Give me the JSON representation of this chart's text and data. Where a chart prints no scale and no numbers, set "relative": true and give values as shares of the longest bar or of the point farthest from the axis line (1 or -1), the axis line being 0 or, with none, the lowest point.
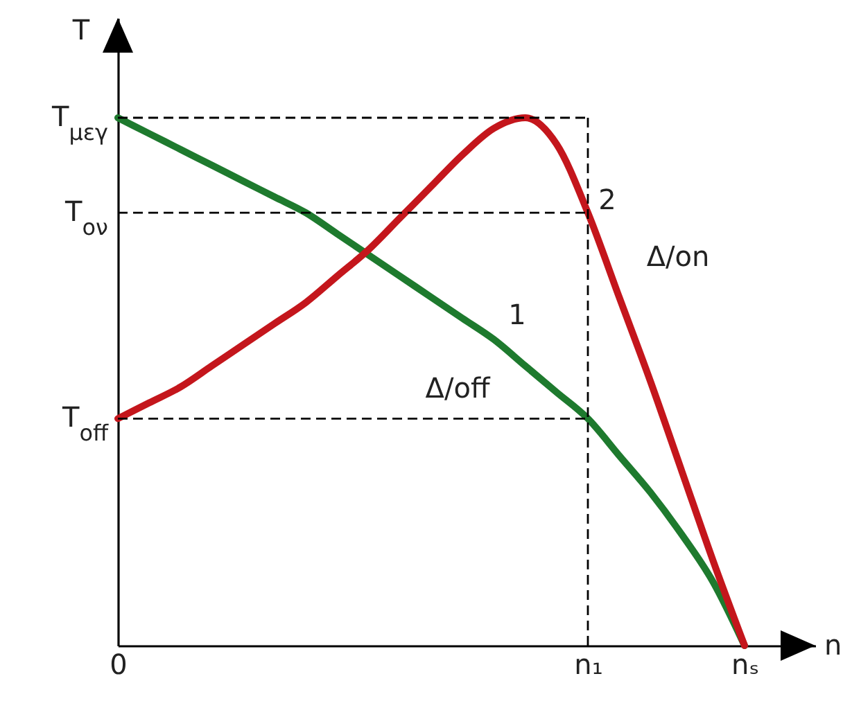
{
  "chart_data": {
    "type": "line",
    "ylabel": "T",
    "xlabel": "n",
    "relative": true,
    "categories": [
      "0",
      null,
      null,
      null,
      null,
      null,
      null,
      null,
      null,
      null,
      null,
      null,
      null,
      null,
      null,
      "n₁",
      null,
      null,
      null,
      null,
      "nₛ"
    ],
    "series": [
      {
        "name": "1",
        "color": "#1e7a2e",
        "values": [
          1,
          0.97,
          0.94,
          0.91,
          0.88,
          0.85,
          0.82,
          0.78,
          0.74,
          0.7,
          0.66,
          0.62,
          0.58,
          0.53,
          0.48,
          0.43,
          0.36,
          0.29,
          0.21,
          0.12,
          0
        ]
      },
      {
        "name": "2",
        "color": "#c4161c",
        "values": [
          0.43,
          0.46,
          0.49,
          0.53,
          0.57,
          0.61,
          0.65,
          0.7,
          0.75,
          0.81,
          0.87,
          0.93,
          0.98,
          1,
          0.95,
          0.82,
          0.66,
          0.5,
          0.33,
          0.16,
          0
        ]
      }
    ],
    "ref_lines": [
      {
        "axis": "y",
        "value": 1,
        "label": "T$_{μεγ}$",
        "color": "#000000",
        "line_style": "dashed"
      },
      {
        "axis": "y",
        "value": 0.82,
        "label": "T$_{ον}$",
        "color": "#000000",
        "line_style": "dashed"
      },
      {
        "axis": "y",
        "value": 0.43,
        "label": "T$_{off}$",
        "color": "#000000",
        "line_style": "dashed"
      },
      {
        "axis": "x",
        "value": "n₁",
        "color": "#000000",
        "line_style": "dashed"
      }
    ],
    "annotations": [
      "Δ/off",
      "Δ/on"
    ]
  }
}
